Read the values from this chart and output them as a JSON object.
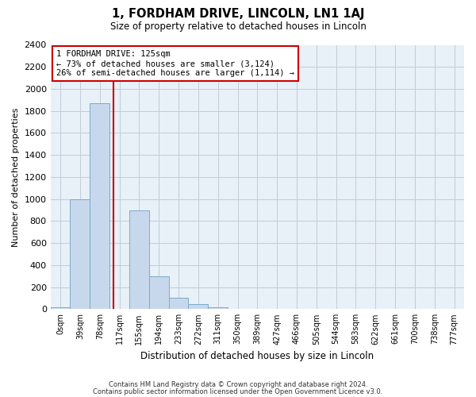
{
  "title": "1, FORDHAM DRIVE, LINCOLN, LN1 1AJ",
  "subtitle": "Size of property relative to detached houses in Lincoln",
  "xlabel": "Distribution of detached houses by size in Lincoln",
  "ylabel": "Number of detached properties",
  "bar_labels": [
    "0sqm",
    "39sqm",
    "78sqm",
    "117sqm",
    "155sqm",
    "194sqm",
    "233sqm",
    "272sqm",
    "311sqm",
    "350sqm",
    "389sqm",
    "427sqm",
    "466sqm",
    "505sqm",
    "544sqm",
    "583sqm",
    "622sqm",
    "661sqm",
    "700sqm",
    "738sqm",
    "777sqm"
  ],
  "bar_values": [
    20,
    1000,
    1870,
    0,
    900,
    300,
    100,
    45,
    20,
    0,
    0,
    0,
    0,
    0,
    0,
    0,
    0,
    0,
    0,
    0,
    0
  ],
  "bar_color": "#c8d8ec",
  "bar_edgecolor": "#7aabcc",
  "vline_x": 3.2,
  "vline_color": "#cc0000",
  "annotation_title": "1 FORDHAM DRIVE: 125sqm",
  "annotation_line1": "← 73% of detached houses are smaller (3,124)",
  "annotation_line2": "26% of semi-detached houses are larger (1,114) →",
  "annotation_box_color": "#cc0000",
  "ylim": [
    0,
    2400
  ],
  "yticks": [
    0,
    200,
    400,
    600,
    800,
    1000,
    1200,
    1400,
    1600,
    1800,
    2000,
    2200,
    2400
  ],
  "footnote1": "Contains HM Land Registry data © Crown copyright and database right 2024.",
  "footnote2": "Contains public sector information licensed under the Open Government Licence v3.0.",
  "bg_color": "#ffffff",
  "plot_bg_color": "#e8f0f8",
  "grid_color": "#c0ccd8"
}
